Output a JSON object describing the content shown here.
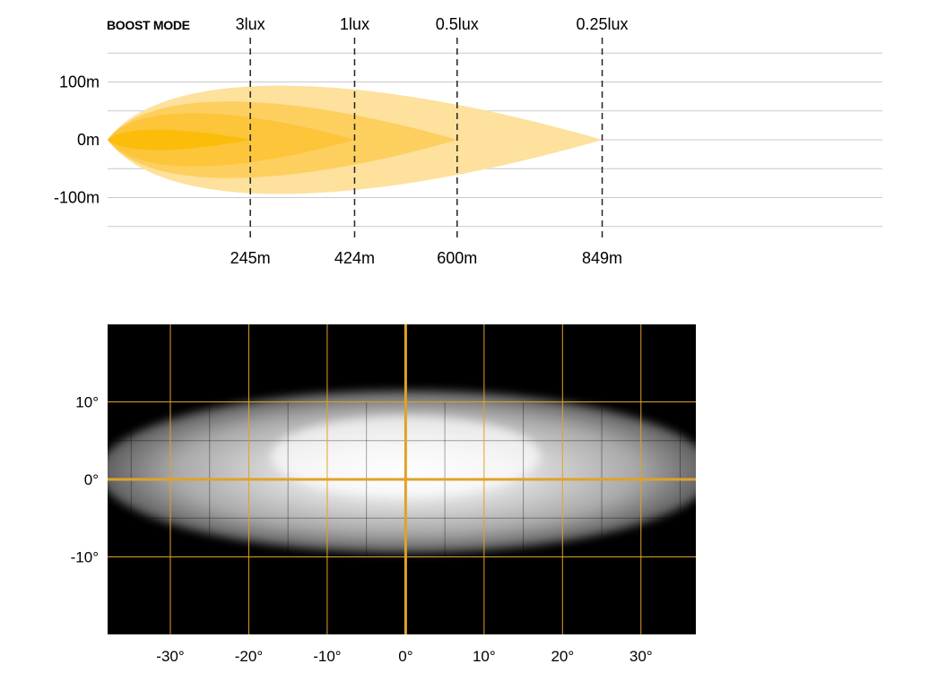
{
  "chart_data": [
    {
      "type": "area",
      "mode_label": "BOOST MODE",
      "y_ticks": [
        {
          "value": 100,
          "label": "100m"
        },
        {
          "value": 0,
          "label": "0m"
        },
        {
          "value": -100,
          "label": "-100m"
        }
      ],
      "ylim": [
        -150,
        150
      ],
      "xlim": [
        0,
        1330
      ],
      "grid": true,
      "beams": [
        {
          "lux_label": "3lux",
          "distance": 245,
          "distance_label": "245m",
          "half_width": 20,
          "color": "#fbbd0a"
        },
        {
          "lux_label": "1lux",
          "distance": 424,
          "distance_label": "424m",
          "half_width": 52,
          "color": "#fcc53a"
        },
        {
          "lux_label": "0.5lux",
          "distance": 600,
          "distance_label": "600m",
          "half_width": 75,
          "color": "#fdcf5f"
        },
        {
          "lux_label": "0.25lux",
          "distance": 849,
          "distance_label": "849m",
          "half_width": 106,
          "color": "#fde19c"
        }
      ]
    },
    {
      "type": "heatmap",
      "x_ticks": [
        {
          "value": -30,
          "label": "-30°"
        },
        {
          "value": -20,
          "label": "-20°"
        },
        {
          "value": -10,
          "label": "-10°"
        },
        {
          "value": 0,
          "label": "0°"
        },
        {
          "value": 10,
          "label": "10°"
        },
        {
          "value": 20,
          "label": "20°"
        },
        {
          "value": 30,
          "label": "30°"
        }
      ],
      "y_ticks": [
        {
          "value": 10,
          "label": "10°"
        },
        {
          "value": 0,
          "label": "0°"
        },
        {
          "value": -10,
          "label": "-10°"
        }
      ],
      "xlim": [
        -38,
        37
      ],
      "ylim": [
        -20,
        20
      ],
      "spread": {
        "horizontal_half": 38,
        "vertical_top": 11.5,
        "vertical_bottom": -9.5,
        "hotspot": [
          0,
          3
        ]
      },
      "colors": {
        "background": "#000000",
        "grid": "#e0a22a",
        "glow": "#ffffff"
      }
    }
  ]
}
